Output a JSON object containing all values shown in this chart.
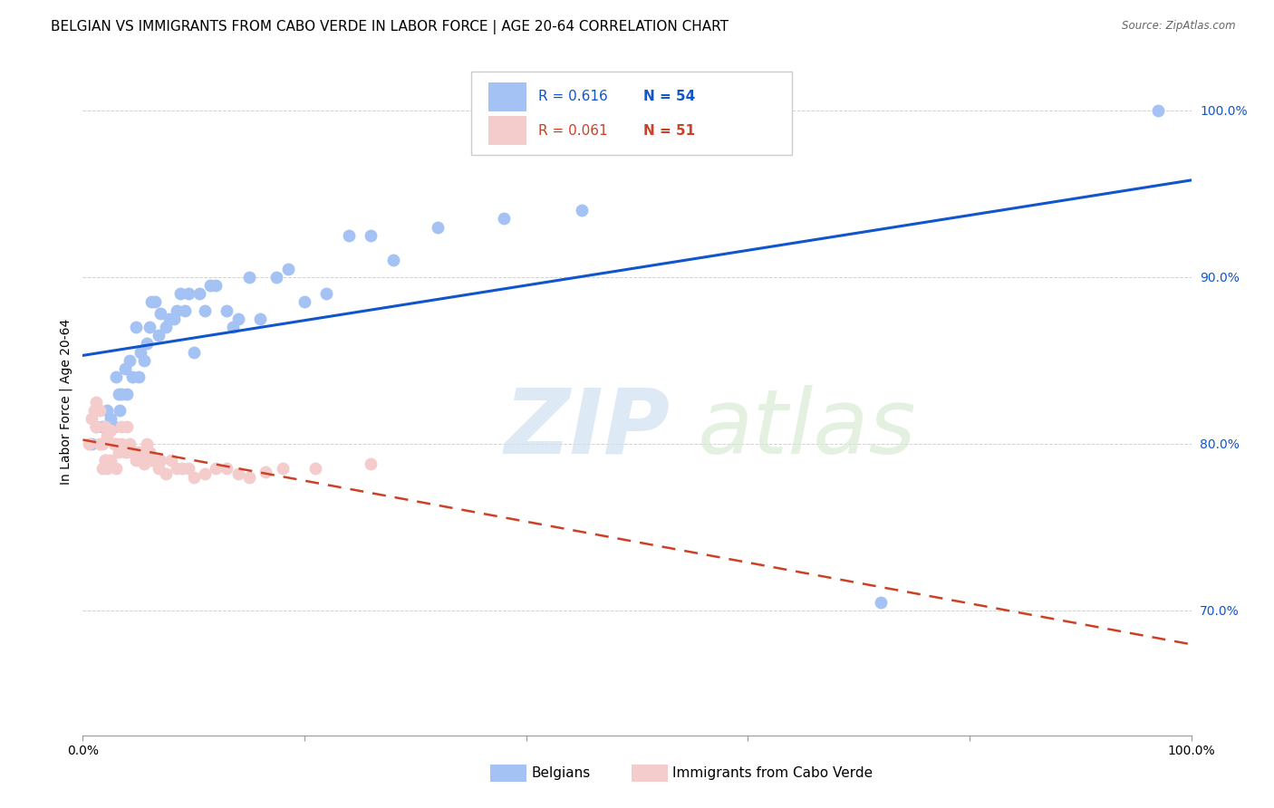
{
  "title": "BELGIAN VS IMMIGRANTS FROM CABO VERDE IN LABOR FORCE | AGE 20-64 CORRELATION CHART",
  "source": "Source: ZipAtlas.com",
  "ylabel": "In Labor Force | Age 20-64",
  "xlim": [
    0.0,
    1.0
  ],
  "ylim": [
    0.625,
    1.025
  ],
  "yticks": [
    0.7,
    0.8,
    0.9,
    1.0
  ],
  "ytick_labels": [
    "70.0%",
    "80.0%",
    "90.0%",
    "100.0%"
  ],
  "xticks": [
    0.0,
    0.2,
    0.4,
    0.6,
    0.8,
    1.0
  ],
  "xtick_labels": [
    "0.0%",
    "",
    "",
    "",
    "",
    "100.0%"
  ],
  "blue_color": "#a4c2f4",
  "pink_color": "#f4cccc",
  "blue_line_color": "#1155cc",
  "pink_line_color": "#cc4125",
  "title_fontsize": 11,
  "axis_label_fontsize": 10,
  "tick_fontsize": 10,
  "blue_x": [
    0.008,
    0.012,
    0.018,
    0.02,
    0.022,
    0.025,
    0.028,
    0.03,
    0.032,
    0.033,
    0.035,
    0.038,
    0.04,
    0.042,
    0.045,
    0.048,
    0.05,
    0.052,
    0.055,
    0.058,
    0.06,
    0.062,
    0.065,
    0.068,
    0.07,
    0.075,
    0.078,
    0.082,
    0.085,
    0.088,
    0.092,
    0.095,
    0.1,
    0.105,
    0.11,
    0.115,
    0.12,
    0.13,
    0.135,
    0.14,
    0.15,
    0.16,
    0.175,
    0.185,
    0.2,
    0.22,
    0.24,
    0.26,
    0.28,
    0.32,
    0.38,
    0.45,
    0.72,
    0.97
  ],
  "blue_y": [
    0.8,
    0.81,
    0.81,
    0.79,
    0.82,
    0.815,
    0.81,
    0.84,
    0.83,
    0.82,
    0.83,
    0.845,
    0.83,
    0.85,
    0.84,
    0.87,
    0.84,
    0.855,
    0.85,
    0.86,
    0.87,
    0.885,
    0.885,
    0.865,
    0.878,
    0.87,
    0.875,
    0.875,
    0.88,
    0.89,
    0.88,
    0.89,
    0.855,
    0.89,
    0.88,
    0.895,
    0.895,
    0.88,
    0.87,
    0.875,
    0.9,
    0.875,
    0.9,
    0.905,
    0.885,
    0.89,
    0.925,
    0.925,
    0.91,
    0.93,
    0.935,
    0.94,
    0.705,
    1.0
  ],
  "pink_x": [
    0.005,
    0.008,
    0.01,
    0.012,
    0.012,
    0.015,
    0.015,
    0.018,
    0.018,
    0.02,
    0.02,
    0.022,
    0.022,
    0.025,
    0.025,
    0.028,
    0.03,
    0.03,
    0.032,
    0.035,
    0.035,
    0.038,
    0.04,
    0.04,
    0.042,
    0.045,
    0.048,
    0.05,
    0.052,
    0.055,
    0.058,
    0.06,
    0.062,
    0.065,
    0.068,
    0.07,
    0.075,
    0.08,
    0.085,
    0.09,
    0.095,
    0.1,
    0.11,
    0.12,
    0.13,
    0.14,
    0.15,
    0.165,
    0.18,
    0.21,
    0.26
  ],
  "pink_y": [
    0.8,
    0.815,
    0.82,
    0.81,
    0.825,
    0.8,
    0.82,
    0.785,
    0.8,
    0.79,
    0.81,
    0.785,
    0.805,
    0.79,
    0.808,
    0.8,
    0.785,
    0.8,
    0.795,
    0.8,
    0.81,
    0.795,
    0.795,
    0.81,
    0.8,
    0.795,
    0.79,
    0.795,
    0.79,
    0.788,
    0.8,
    0.795,
    0.79,
    0.79,
    0.785,
    0.79,
    0.782,
    0.79,
    0.785,
    0.785,
    0.785,
    0.78,
    0.782,
    0.785,
    0.785,
    0.782,
    0.78,
    0.783,
    0.785,
    0.785,
    0.788
  ]
}
